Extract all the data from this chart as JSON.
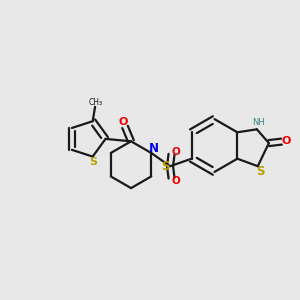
{
  "bg_color": "#e8e8e8",
  "bond_color": "#1a1a1a",
  "s_color": "#b8a000",
  "n_color": "#0000ee",
  "o_color": "#ee0000",
  "nh_color": "#3a8080",
  "lw": 1.6,
  "figsize": [
    3.0,
    3.0
  ],
  "dpi": 100,
  "xlim": [
    0.0,
    1.0
  ],
  "ylim": [
    0.1,
    0.9
  ]
}
